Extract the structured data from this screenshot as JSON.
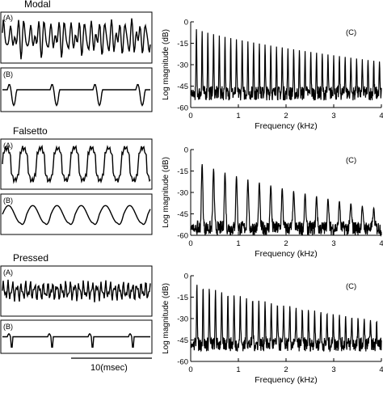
{
  "time_scale_label": "10(msec)",
  "chart_data": [
    {
      "type": "line",
      "title": "Modal",
      "panels": [
        {
          "label": "(A)",
          "kind": "waveform"
        },
        {
          "label": "(B)",
          "kind": "glottal-flow-derivative"
        }
      ],
      "spectrum": {
        "label": "(C)",
        "xlabel": "Frequency (kHz)",
        "ylabel": "Log magnitude (dB)",
        "xlim": [
          0,
          4
        ],
        "ylim": [
          -60,
          0
        ],
        "xticks": [
          "0",
          "1",
          "2",
          "3",
          "4"
        ],
        "yticks": [
          "0",
          "-15",
          "-30",
          "-45",
          "-60"
        ],
        "f0_khz": 0.12,
        "peak_db_start": -3,
        "peak_db_end": -28,
        "valley_db": -50
      }
    },
    {
      "type": "line",
      "title": "Falsetto",
      "panels": [
        {
          "label": "(A)",
          "kind": "waveform"
        },
        {
          "label": "(B)",
          "kind": "glottal-flow-derivative"
        }
      ],
      "spectrum": {
        "label": "(C)",
        "xlabel": "Frequency (kHz)",
        "ylabel": "Log magnitude (dB)",
        "xlim": [
          0,
          4
        ],
        "ylim": [
          -60,
          0
        ],
        "xticks": [
          "0",
          "1",
          "2",
          "3",
          "4"
        ],
        "yticks": [
          "0",
          "-15",
          "-30",
          "-45",
          "-60"
        ],
        "f0_khz": 0.24,
        "peak_db_start": -5,
        "peak_db_end": -42,
        "valley_db": -55
      }
    },
    {
      "type": "line",
      "title": "Pressed",
      "panels": [
        {
          "label": "(A)",
          "kind": "waveform"
        },
        {
          "label": "(B)",
          "kind": "glottal-flow-derivative"
        }
      ],
      "spectrum": {
        "label": "(C)",
        "xlabel": "Frequency (kHz)",
        "ylabel": "Log magnitude (dB)",
        "xlim": [
          0,
          4
        ],
        "ylim": [
          -60,
          0
        ],
        "xticks": [
          "0",
          "1",
          "2",
          "3",
          "4"
        ],
        "yticks": [
          "0",
          "-15",
          "-30",
          "-45",
          "-60"
        ],
        "f0_khz": 0.13,
        "peak_db_start": -3,
        "peak_db_end": -32,
        "valley_db": -48
      }
    }
  ]
}
